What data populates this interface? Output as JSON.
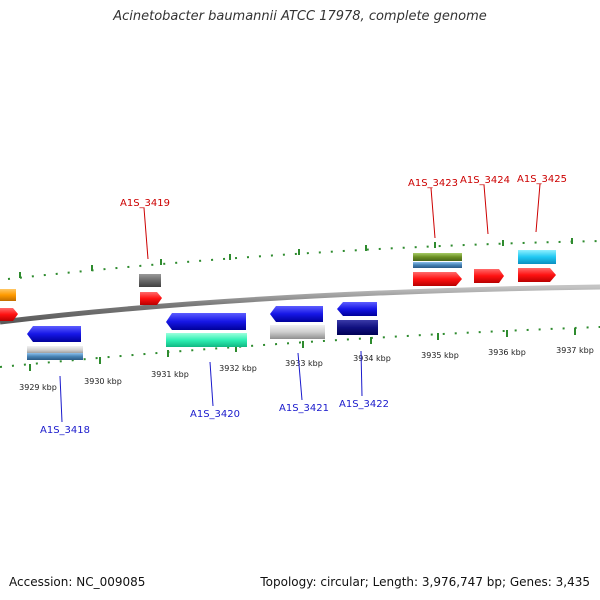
{
  "title": "Acinetobacter baumannii ATCC 17978, complete genome",
  "footer": {
    "accession": "Accession: NC_009085",
    "stats": "Topology: circular; Length: 3,976,747 bp; Genes: 3,435"
  },
  "colors": {
    "backbone": "#8a8a8a",
    "tick": "#2e8b2e",
    "forward_label": "#cc0000",
    "reverse_label": "#1a1acc"
  },
  "ruler_labels": [
    "3929 kbp",
    "3930 kbp",
    "3931 kbp",
    "3932 kbp",
    "3933 kbp",
    "3934 kbp",
    "3935 kbp",
    "3936 kbp",
    "3937 kbp"
  ],
  "gene_labels": {
    "a1s_3418": "A1S_3418",
    "a1s_3419": "A1S_3419",
    "a1s_3420": "A1S_3420",
    "a1s_3421": "A1S_3421",
    "a1s_3422": "A1S_3422",
    "a1s_3423": "A1S_3423",
    "a1s_3424": "A1S_3424",
    "a1s_3425": "A1S_3425"
  }
}
